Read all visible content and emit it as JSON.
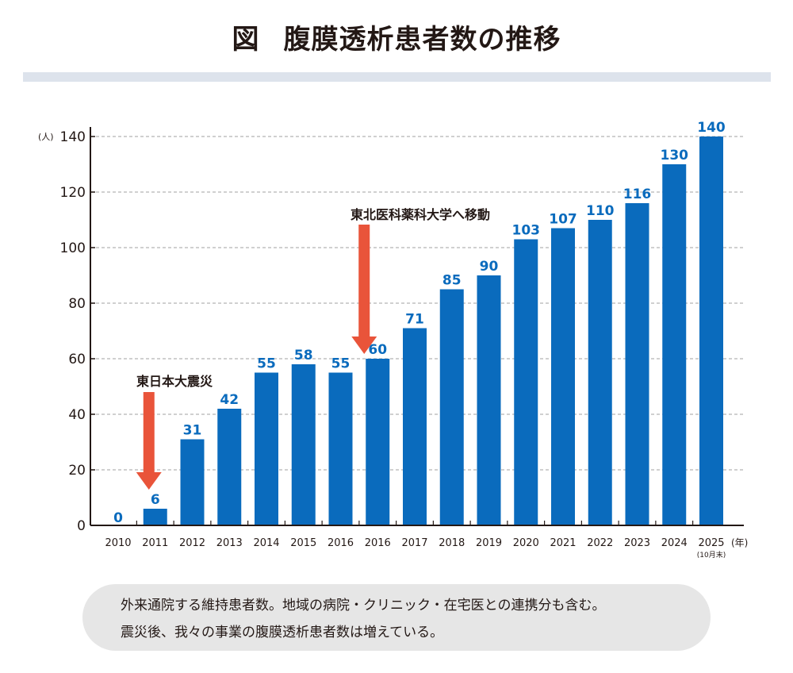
{
  "title": {
    "prefix": "図",
    "text": "腹膜透析患者数の推移"
  },
  "chart_data": {
    "type": "bar",
    "title": "腹膜透析患者数の推移",
    "categories": [
      "2010",
      "2011",
      "2012",
      "2013",
      "2014",
      "2015",
      "2016",
      "2016",
      "2017",
      "2018",
      "2019",
      "2020",
      "2021",
      "2022",
      "2023",
      "2024",
      "2025"
    ],
    "values": [
      0,
      6,
      31,
      42,
      55,
      58,
      55,
      60,
      71,
      85,
      90,
      103,
      107,
      110,
      116,
      130,
      140
    ],
    "last_category_note": "(10月末)",
    "xlabel": "(年)",
    "ylabel": "(人)",
    "ylim": [
      0,
      140
    ],
    "yticks": [
      0,
      20,
      40,
      60,
      80,
      100,
      120,
      140
    ],
    "grid": true,
    "bar_color": "#0a6bbd",
    "label_color": "#0a6bbd",
    "annotations": [
      {
        "text": "東日本大震災",
        "target_index": 1,
        "arrow_color": "#e9543a"
      },
      {
        "text": "東北医科薬科大学へ移動",
        "target_index": 7,
        "arrow_color": "#e9543a"
      }
    ]
  },
  "note": {
    "line1": "外来通院する維持患者数。地域の病院・クリニック・在宅医との連携分も含む。",
    "line2": "震災後、我々の事業の腹膜透析患者数は増えている。"
  }
}
